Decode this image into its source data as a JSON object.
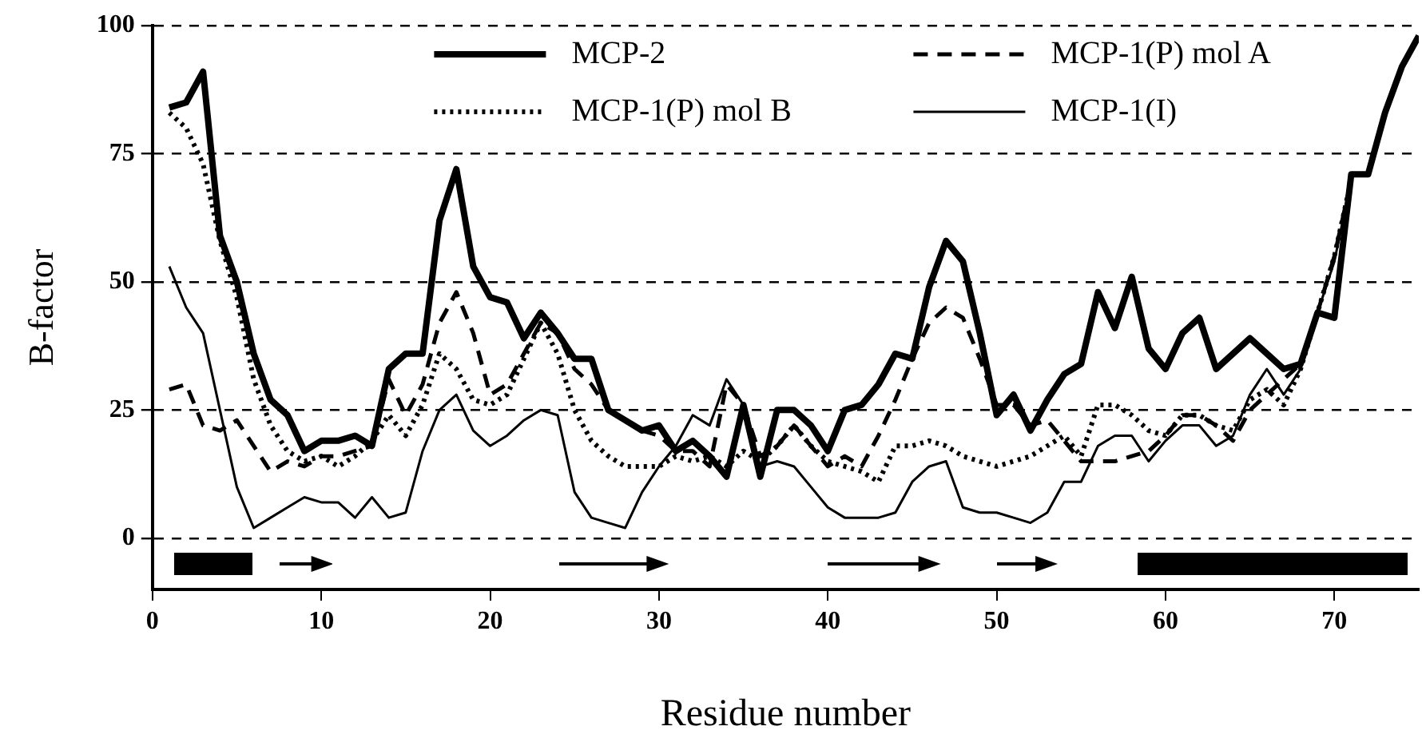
{
  "chart_data": {
    "type": "line",
    "xlabel": "Residue number",
    "ylabel": "B-factor",
    "x": [
      1,
      2,
      3,
      4,
      5,
      6,
      7,
      8,
      9,
      10,
      11,
      12,
      13,
      14,
      15,
      16,
      17,
      18,
      19,
      20,
      21,
      22,
      23,
      24,
      25,
      26,
      27,
      28,
      29,
      30,
      31,
      32,
      33,
      34,
      35,
      36,
      37,
      38,
      39,
      40,
      41,
      42,
      43,
      44,
      45,
      46,
      47,
      48,
      49,
      50,
      51,
      52,
      53,
      54,
      55,
      56,
      57,
      58,
      59,
      60,
      61,
      62,
      63,
      64,
      65,
      66,
      67,
      68,
      69,
      70,
      71,
      72,
      73,
      74,
      75
    ],
    "xlim": [
      0,
      75
    ],
    "xticks": [
      0,
      10,
      20,
      30,
      40,
      50,
      60,
      70
    ],
    "ylim": [
      -10,
      100
    ],
    "yticks": [
      0,
      25,
      50,
      75,
      100
    ],
    "grid": "y",
    "legend": "top",
    "marker": "none",
    "series": [
      {
        "name": "MCP-2",
        "color": "#000000",
        "line_style": "solid",
        "values": [
          84,
          85,
          91,
          59,
          50,
          36,
          27,
          24,
          17,
          19,
          19,
          20,
          18,
          33,
          36,
          36,
          62,
          72,
          53,
          47,
          46,
          39,
          44,
          40,
          35,
          35,
          25,
          23,
          21,
          22,
          17,
          19,
          16,
          12,
          26,
          12,
          25,
          25,
          22,
          17,
          25,
          26,
          30,
          36,
          35,
          49,
          58,
          54,
          40,
          24,
          28,
          21,
          27,
          32,
          34,
          48,
          41,
          51,
          37,
          33,
          40,
          43,
          33,
          36,
          39,
          36,
          33,
          34,
          44,
          43,
          71,
          71,
          83,
          92,
          98
        ]
      },
      {
        "name": "MCP-1(P) mol A",
        "color": "#000000",
        "line_style": "dashed",
        "values": [
          29,
          30,
          22,
          21,
          23,
          18,
          13,
          15,
          14,
          16,
          16,
          17,
          18,
          31,
          24,
          30,
          42,
          48,
          40,
          28,
          30,
          36,
          42,
          40,
          33,
          30,
          25,
          23,
          21,
          20,
          17,
          17,
          14,
          30,
          26,
          16,
          18,
          22,
          18,
          14,
          16,
          14,
          20,
          27,
          35,
          42,
          45,
          43,
          35,
          26,
          26,
          22,
          23,
          19,
          15,
          15,
          15,
          16,
          17,
          20,
          24,
          24,
          22,
          19,
          25,
          28,
          31,
          34,
          44,
          55,
          70,
          null,
          null,
          null,
          null
        ]
      },
      {
        "name": "MCP-1(P) mol B",
        "color": "#000000",
        "line_style": "dotted",
        "values": [
          83,
          80,
          73,
          58,
          47,
          31,
          22,
          17,
          15,
          16,
          14,
          16,
          19,
          24,
          20,
          26,
          36,
          33,
          27,
          26,
          28,
          35,
          42,
          36,
          25,
          19,
          16,
          14,
          14,
          14,
          16,
          15,
          16,
          14,
          17,
          15,
          18,
          22,
          18,
          15,
          14,
          13,
          11,
          18,
          18,
          19,
          18,
          16,
          15,
          14,
          15,
          16,
          18,
          20,
          16,
          26,
          26,
          24,
          21,
          20,
          24,
          24,
          22,
          21,
          27,
          29,
          26,
          33,
          44,
          55,
          70,
          null,
          null,
          null,
          null
        ]
      },
      {
        "name": "MCP-1(I)",
        "color": "#000000",
        "line_style": "solid",
        "values": [
          53,
          45,
          40,
          25,
          10,
          2,
          4,
          6,
          8,
          7,
          7,
          4,
          8,
          4,
          5,
          17,
          25,
          28,
          21,
          18,
          20,
          23,
          25,
          24,
          9,
          4,
          3,
          2,
          9,
          14,
          18,
          24,
          22,
          31,
          26,
          14,
          15,
          14,
          10,
          6,
          4,
          4,
          4,
          5,
          11,
          14,
          15,
          6,
          5,
          5,
          4,
          3,
          5,
          11,
          11,
          18,
          20,
          20,
          15,
          19,
          22,
          22,
          18,
          20,
          28,
          33,
          28,
          33,
          44,
          54,
          70,
          null,
          null,
          null,
          null
        ]
      }
    ]
  }
}
